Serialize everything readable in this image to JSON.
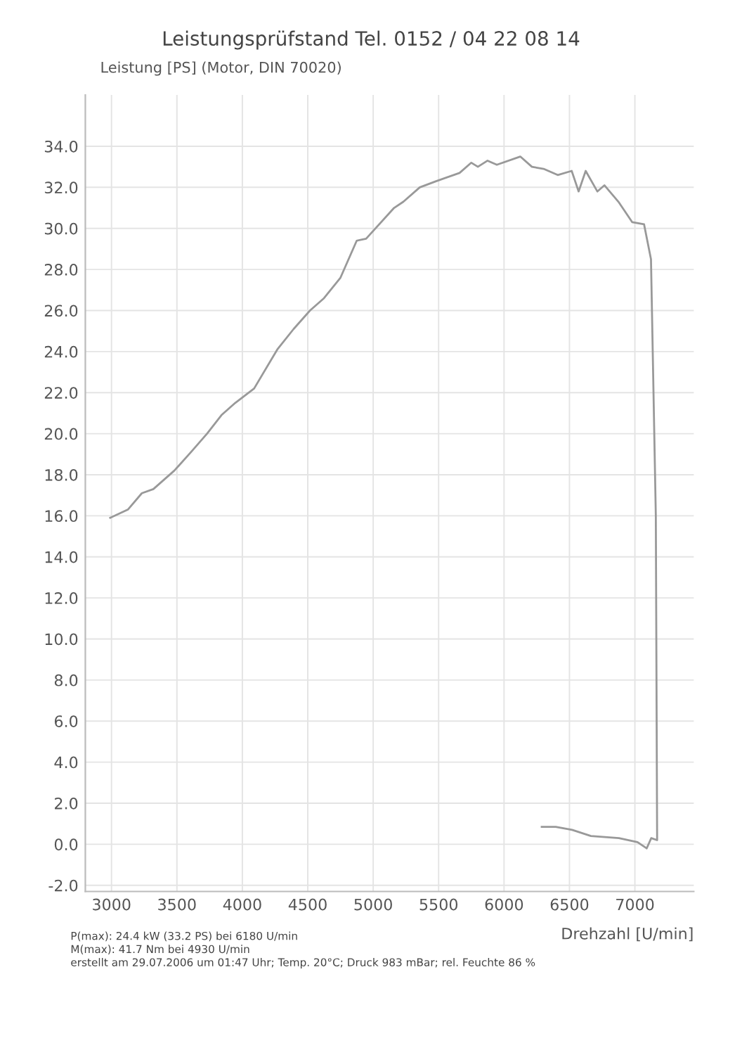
{
  "chart_data": {
    "type": "line",
    "title": "Leistungsprüfstand Tel. 0152 / 04 22 08 14",
    "ylabel": "Leistung [PS] (Motor, DIN 70020)",
    "xlabel": "Drehzahl [U/min]",
    "annotations": [
      "P(max): 24.4 kW (33.2 PS) bei 6180 U/min",
      "M(max): 41.7 Nm bei 4930 U/min",
      "erstellt am 29.07.2006 um 01:47 Uhr; Temp. 20°C; Druck 983 mBar; rel. Feuchte 86 %"
    ],
    "series": [
      {
        "color": "#999999",
        "x": [
          2990,
          3125,
          3232,
          3320,
          3480,
          3607,
          3730,
          3840,
          3946,
          4090,
          4267,
          4392,
          4517,
          4624,
          4750,
          4874,
          4946,
          5160,
          5231,
          5356,
          5481,
          5660,
          5750,
          5800,
          5874,
          5945,
          6124,
          6213,
          6302,
          6410,
          6517,
          6570,
          6624,
          6713,
          6767,
          6874,
          6980,
          7070,
          7123,
          7160,
          7170,
          7125,
          7090,
          7020,
          6878,
          6664,
          6520,
          6395,
          6288
        ],
        "values": [
          15.9,
          16.3,
          17.1,
          17.3,
          18.2,
          19.1,
          20.0,
          20.9,
          21.5,
          22.2,
          24.1,
          25.1,
          26.0,
          26.6,
          27.6,
          29.4,
          29.5,
          31.0,
          31.3,
          32.0,
          32.3,
          32.7,
          33.2,
          33.0,
          33.3,
          33.1,
          33.5,
          33.0,
          32.9,
          32.6,
          32.8,
          31.8,
          32.8,
          31.8,
          32.1,
          31.3,
          30.3,
          30.2,
          28.5,
          16.0,
          0.2,
          0.3,
          -0.2,
          0.1,
          0.3,
          0.4,
          0.7,
          0.85,
          0.85
        ]
      }
    ],
    "xlim": [
      2800,
      7450
    ],
    "ylim": [
      -2.3,
      36.5
    ],
    "xticks": [
      3000,
      3500,
      4000,
      4500,
      5000,
      5500,
      6000,
      6500,
      7000
    ],
    "yticks": [
      {
        "value": -2,
        "label": "-2.0"
      },
      {
        "value": 0,
        "label": "0.0"
      },
      {
        "value": 2,
        "label": "2.0"
      },
      {
        "value": 4,
        "label": "4.0"
      },
      {
        "value": 6,
        "label": "6.0"
      },
      {
        "value": 8,
        "label": "8.0"
      },
      {
        "value": 10,
        "label": "10.0"
      },
      {
        "value": 12,
        "label": "12.0"
      },
      {
        "value": 14,
        "label": "14.0"
      },
      {
        "value": 16,
        "label": "16.0"
      },
      {
        "value": 18,
        "label": "18.0"
      },
      {
        "value": 20,
        "label": "20.0"
      },
      {
        "value": 22,
        "label": "22.0"
      },
      {
        "value": 24,
        "label": "24.0"
      },
      {
        "value": 26,
        "label": "26.0"
      },
      {
        "value": 28,
        "label": "28.0"
      },
      {
        "value": 30,
        "label": "30.0"
      },
      {
        "value": 32,
        "label": "32.0"
      },
      {
        "value": 34,
        "label": "34.0"
      }
    ],
    "grid": true
  }
}
